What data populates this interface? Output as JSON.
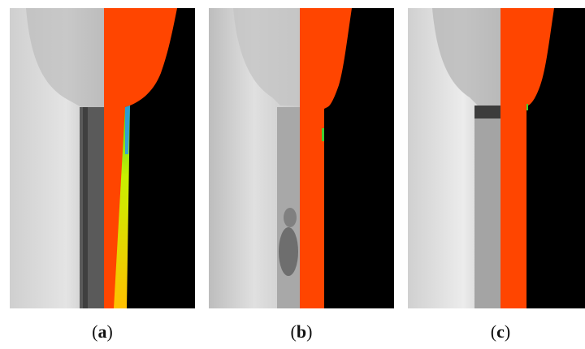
{
  "panels": [
    {
      "id": "a",
      "label_open": "(",
      "letter": "a",
      "label_close": ")"
    },
    {
      "id": "b",
      "label_open": "(",
      "letter": "b",
      "label_close": ")"
    },
    {
      "id": "c",
      "label_open": "(",
      "letter": "c",
      "label_close": ")"
    }
  ],
  "colors": {
    "overlay_red": "#ff4500",
    "background_black": "#000000",
    "photo_light": "#d9d9d9",
    "photo_dark": "#4a4a4a",
    "field_yellow": "#ffe000",
    "field_green": "#40d030",
    "field_blue": "#2090ff"
  }
}
